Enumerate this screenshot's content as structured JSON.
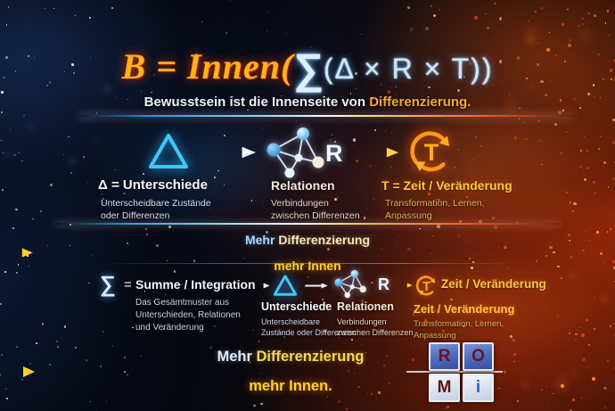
{
  "header": {
    "formula": {
      "gold": "B = Innen(",
      "sigma": "∑",
      "blue": "(Δ × R × T))"
    },
    "subtitle_plain": "Bewusstsein ist die Innenseite von ",
    "subtitle_accent": "Differenzierung."
  },
  "row1": {
    "items": [
      {
        "icon": "triangle-delta",
        "label": "Δ = Unterschiede",
        "desc": "Unterscheidbare Zustände\noder Differenzen"
      },
      {
        "icon": "relation-network",
        "letter": "R",
        "label": "Relationen",
        "desc": "Verbindungen\nzwischen Differenzen"
      },
      {
        "icon": "time-cycle",
        "letter": "T",
        "label": "T = Zeit / Veränderung",
        "desc": "Transformation, Lernen,\nAnpassung"
      }
    ]
  },
  "band1": {
    "lead": "Mehr",
    "mid": "Differenzierung",
    "tail": "mehr Innen"
  },
  "row2": {
    "sigma": "∑",
    "eq": "=",
    "title": "Summe / Integration",
    "desc": "Das Gesämtmuster aus\nUnterschieden, Relationen\nund Veränderung",
    "items": [
      {
        "icon": "triangle-delta",
        "label": "Unterschiede",
        "desc": "Unterscheidbare\nZustände oder Differenzen"
      },
      {
        "icon": "relation-network",
        "letter": "R",
        "label": "Relationen",
        "desc": "Verbindungen\nzwischen Differenzen"
      },
      {
        "icon": "time-cycle",
        "letter": "T",
        "inline_label": "Zeit / Veränderung",
        "label": "Zeit / Veränderung",
        "desc": "Transformation, Lernen,\nAnpassung"
      }
    ]
  },
  "band2": {
    "lead": "Mehr",
    "mid": "Differenzierung",
    "tail": "mehr Innen."
  },
  "logo": {
    "letters": [
      "R",
      "O",
      "M",
      "i"
    ]
  },
  "colors": {
    "formula_gold": "#ffb11e",
    "formula_blue": "#cde8ff",
    "delta_cyan": "#3ec8fa",
    "cycle_orange": "#ff9718",
    "accent_gold": "#ffd22a",
    "logo_blue_tile": "#4a66bc",
    "logo_dark_red": "#6e1316"
  }
}
